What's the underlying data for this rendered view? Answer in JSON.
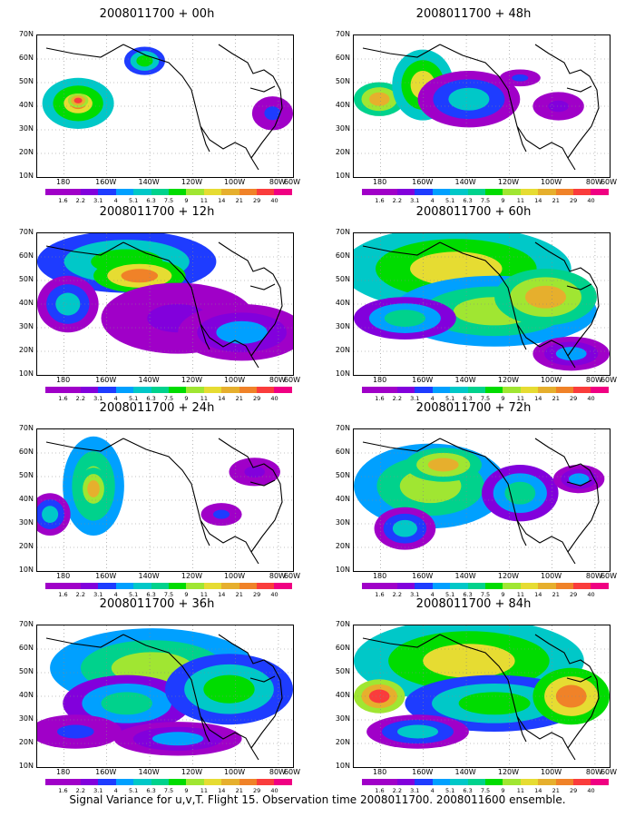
{
  "panels": [
    {
      "title": "2008011700 + 00h"
    },
    {
      "title": "2008011700 + 48h"
    },
    {
      "title": "2008011700 + 12h"
    },
    {
      "title": "2008011700 + 60h"
    },
    {
      "title": "2008011700 + 24h"
    },
    {
      "title": "2008011700 + 72h"
    },
    {
      "title": "2008011700 + 36h"
    },
    {
      "title": "2008011700 + 84h"
    }
  ],
  "lat_labels": [
    "70N",
    "60N",
    "50N",
    "40N",
    "30N",
    "20N",
    "10N"
  ],
  "lon_labels": [
    "180",
    "160W",
    "140W",
    "120W",
    "100W",
    "80W",
    "60W"
  ],
  "colorbar": {
    "values": [
      "1.6",
      "2.2",
      "3.1",
      "4",
      "5.1",
      "6.3",
      "7.5",
      "9",
      "11",
      "14",
      "21",
      "29",
      "40"
    ],
    "colors": [
      "#a000c8",
      "#8200dc",
      "#1e3cff",
      "#00a0ff",
      "#00c8c8",
      "#00d28c",
      "#00dc00",
      "#a0e632",
      "#e6dc32",
      "#e6af2d",
      "#f08228",
      "#fa3c3c",
      "#f00082"
    ]
  },
  "caption": "Signal Variance for u,v,T. Flight 15. Observation time 2008011700. 2008011600 ensemble."
}
